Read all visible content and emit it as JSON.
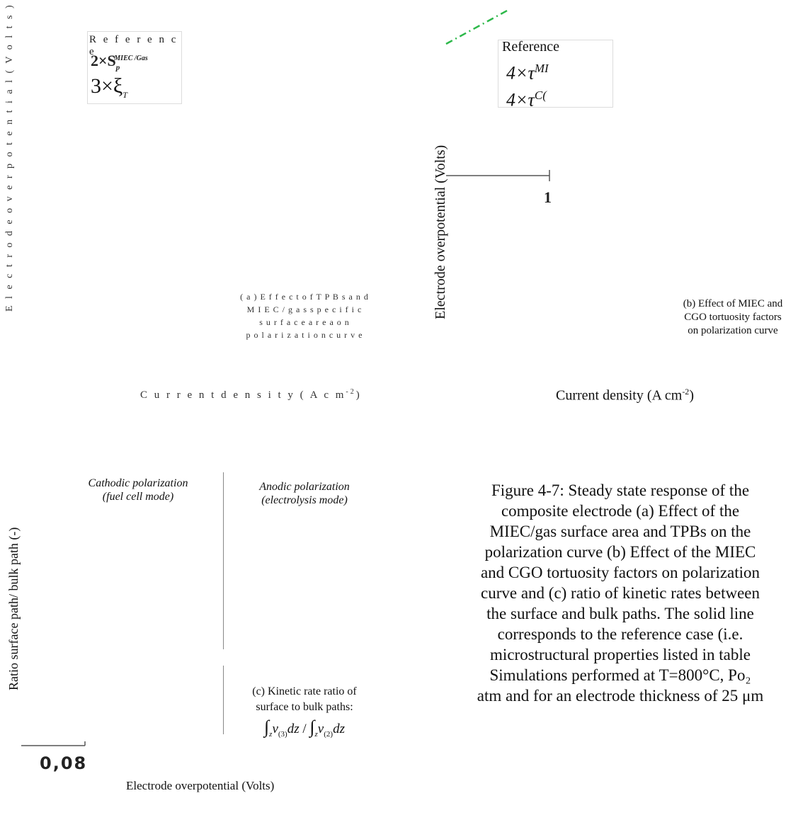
{
  "panel_a": {
    "legend_title": "R e f e r e n c e",
    "legend_line1": "2×S",
    "legend_line1_sub": "p",
    "legend_line1_sup": "MIEC /Gas",
    "legend_line2": "3×ξ",
    "legend_line2_sub": "T",
    "ylabel": "E l e c t r o d e   o v e r p o t e n t i a l   ( V o l t s )",
    "xlabel": "C u r r e n t  d e n s i t y   ( A   c m",
    "xlabel_sup": "-2",
    "xlabel_close": ")",
    "caption_lines": [
      "( a )  E f f e c t  o f  T P B s  a n d",
      "M  I E C  / g a s  s p e c i f i c",
      "s u r f a c e  a r e a  o n",
      "p o l a r i z a t i o n   c u r v e"
    ]
  },
  "panel_b": {
    "legend_title": "Reference",
    "legend_line1": "4×τ",
    "legend_line1_sup": "MI",
    "legend_line2": "4×τ",
    "legend_line2_sup": "C(",
    "ylabel": "Electrode overpotential (Volts)",
    "tick_label": "1",
    "xlabel": "Current density (A cm",
    "xlabel_sup": "-2",
    "xlabel_close": ")",
    "caption_lines": [
      "(b) Effect of MIEC and",
      "CGO tortuosity factors",
      "on polarization curve"
    ],
    "dash_color": "#2db84a"
  },
  "panel_c": {
    "cathodic_line1": "Cathodic polarization",
    "cathodic_line2": "(fuel cell mode)",
    "anodic_line1": "Anodic polarization",
    "anodic_line2": "(electrolysis mode)",
    "ylabel": "Ratio surface path/ bulk path (-)",
    "caption_line1": "(c) Kinetic rate ratio of",
    "caption_line2": "surface to bulk paths:",
    "formula_left": "v",
    "formula_left_sub": "(3)",
    "formula_right": "v",
    "formula_right_sub": "(2)",
    "formula_z": "z",
    "formula_dz": "dz",
    "tick_label": "0,08",
    "xlabel": "Electrode overpotential (Volts)"
  },
  "figure_caption": {
    "lines": [
      "Figure 4-7: Steady state response of the",
      "composite electrode (a) Effect of the",
      "MIEC/gas surface area and TPBs on the",
      "polarization curve (b) Effect of the MIEC",
      "and CGO tortuosity factors on polarization",
      "curve and (c) ratio of kinetic rates between",
      "the surface and bulk paths. The solid line",
      "corresponds to the reference case (i.e.",
      "microstructural properties listed in table",
      "Simulations performed at T=800°C, Po₂",
      "atm and for an electrode thickness of 25 μm"
    ]
  }
}
